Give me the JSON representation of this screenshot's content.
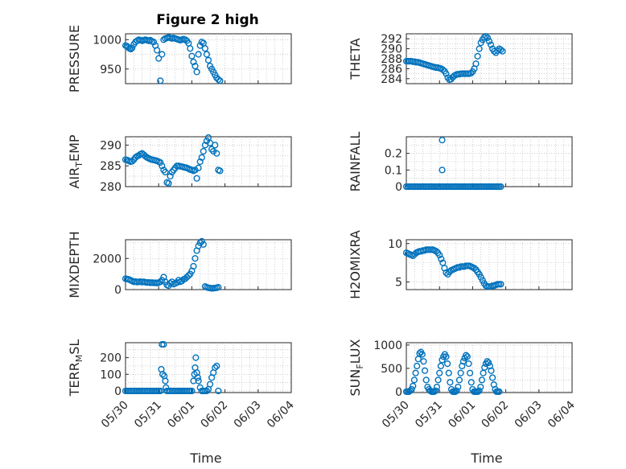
{
  "title": "Figure 2 high",
  "xlabel": "Time",
  "x_ticks": [
    "05/30",
    "05/31",
    "06/01",
    "06/02",
    "06/03",
    "06/04"
  ],
  "colors": {
    "marker": "#0072bd",
    "axes": "#262626",
    "grid": "#b0b0b0"
  },
  "chart_data": [
    {
      "type": "scatter",
      "id": "pressure",
      "ylabel": "PRESSURE",
      "ylabel_sub": "",
      "ylim": [
        925,
        1010
      ],
      "yticks": [
        950,
        1000
      ],
      "show_xticks": false,
      "x": [
        0.0,
        0.04,
        0.08,
        0.12,
        0.16,
        0.2,
        0.25,
        0.3,
        0.35,
        0.4,
        0.45,
        0.5,
        0.55,
        0.6,
        0.65,
        0.7,
        0.75,
        0.8,
        0.85,
        0.9,
        0.95,
        1.0,
        1.05,
        1.1,
        1.15,
        1.2,
        1.25,
        1.3,
        1.35,
        1.4,
        1.45,
        1.5,
        1.55,
        1.6,
        1.65,
        1.7,
        1.75,
        1.8,
        1.85,
        1.9,
        1.95,
        2.0,
        2.05,
        2.1,
        2.15,
        2.2,
        2.25,
        2.3,
        2.35,
        2.4,
        2.45,
        2.5,
        2.55,
        2.6,
        2.65,
        2.7,
        2.75,
        2.8,
        2.85
      ],
      "y": [
        990,
        989,
        987,
        985,
        984,
        986,
        992,
        996,
        998,
        1000,
        999,
        998,
        999,
        1000,
        999,
        998,
        999,
        997,
        996,
        990,
        982,
        968,
        930,
        975,
        1000,
        1002,
        1003,
        1004,
        1003,
        1002,
        1003,
        1002,
        1001,
        1000,
        999,
        1000,
        1001,
        1000,
        998,
        994,
        985,
        972,
        962,
        955,
        945,
        975,
        990,
        996,
        994,
        985,
        975,
        965,
        955,
        950,
        945,
        940,
        935,
        932,
        930
      ]
    },
    {
      "type": "scatter",
      "id": "theta",
      "ylabel": "THETA",
      "ylabel_sub": "",
      "ylim": [
        283,
        293
      ],
      "yticks": [
        284,
        286,
        288,
        290,
        292
      ],
      "show_xticks": false,
      "x": [
        0.0,
        0.05,
        0.1,
        0.15,
        0.2,
        0.25,
        0.3,
        0.35,
        0.4,
        0.45,
        0.5,
        0.55,
        0.6,
        0.65,
        0.7,
        0.75,
        0.8,
        0.85,
        0.9,
        0.95,
        1.0,
        1.05,
        1.1,
        1.15,
        1.2,
        1.25,
        1.3,
        1.35,
        1.4,
        1.45,
        1.5,
        1.55,
        1.6,
        1.65,
        1.7,
        1.75,
        1.8,
        1.85,
        1.9,
        1.95,
        2.0,
        2.05,
        2.1,
        2.15,
        2.2,
        2.25,
        2.3,
        2.35,
        2.4,
        2.45,
        2.5,
        2.55,
        2.6,
        2.65,
        2.7,
        2.75,
        2.8,
        2.85,
        2.9
      ],
      "y": [
        287.5,
        287.5,
        287.5,
        287.5,
        287.4,
        287.4,
        287.3,
        287.3,
        287.2,
        287.1,
        287.0,
        286.9,
        286.8,
        286.7,
        286.6,
        286.5,
        286.4,
        286.3,
        286.2,
        286.2,
        286.1,
        286.0,
        285.8,
        285.5,
        285.0,
        284.2,
        283.8,
        283.9,
        284.3,
        284.6,
        284.8,
        284.9,
        284.9,
        285.0,
        285.0,
        285.0,
        285.0,
        285.0,
        285.0,
        285.1,
        285.4,
        286.0,
        287.0,
        288.5,
        290.0,
        291.2,
        291.8,
        292.3,
        292.5,
        292.2,
        291.5,
        290.8,
        290.0,
        289.5,
        289.2,
        289.6,
        290.0,
        289.8,
        289.5
      ]
    },
    {
      "type": "scatter",
      "id": "air_temp",
      "ylabel": "AIR",
      "ylabel_sub": "T",
      "ylabel_suffix": "EMP",
      "ylim": [
        280,
        292
      ],
      "yticks": [
        280,
        285,
        290
      ],
      "show_xticks": false,
      "x": [
        0.0,
        0.05,
        0.1,
        0.15,
        0.2,
        0.25,
        0.3,
        0.35,
        0.4,
        0.45,
        0.5,
        0.55,
        0.6,
        0.65,
        0.7,
        0.75,
        0.8,
        0.85,
        0.9,
        0.95,
        1.0,
        1.05,
        1.1,
        1.15,
        1.2,
        1.25,
        1.3,
        1.35,
        1.4,
        1.45,
        1.5,
        1.55,
        1.6,
        1.65,
        1.7,
        1.75,
        1.8,
        1.85,
        1.9,
        1.95,
        2.0,
        2.05,
        2.1,
        2.15,
        2.2,
        2.25,
        2.3,
        2.35,
        2.4,
        2.45,
        2.5,
        2.55,
        2.6,
        2.65,
        2.7,
        2.75,
        2.8,
        2.85
      ],
      "y": [
        286.5,
        286.4,
        286.2,
        286.0,
        286.1,
        286.5,
        287.0,
        287.3,
        287.5,
        287.8,
        288.0,
        287.7,
        287.3,
        287.0,
        286.8,
        286.6,
        286.5,
        286.4,
        286.3,
        286.2,
        286.0,
        285.8,
        285.0,
        284.0,
        283.5,
        281.0,
        280.8,
        282.5,
        283.5,
        284.0,
        284.5,
        285.0,
        285.0,
        284.9,
        284.8,
        284.7,
        284.6,
        284.5,
        284.3,
        284.1,
        284.0,
        283.8,
        284.0,
        282.0,
        284.5,
        286.0,
        287.0,
        288.5,
        290.0,
        291.0,
        291.8,
        290.5,
        289.0,
        288.5,
        290.0,
        288.0,
        284.0,
        283.8
      ]
    },
    {
      "type": "scatter",
      "id": "rainfall",
      "ylabel": "RAINFALL",
      "ylabel_sub": "",
      "ylim": [
        0,
        0.3
      ],
      "yticks": [
        0,
        0.1,
        0.2
      ],
      "show_xticks": false,
      "x": [
        0.0,
        0.05,
        0.1,
        0.15,
        0.2,
        0.25,
        0.3,
        0.35,
        0.4,
        0.45,
        0.5,
        0.55,
        0.6,
        0.65,
        0.7,
        0.75,
        0.8,
        0.85,
        0.9,
        0.95,
        1.0,
        1.05,
        1.1,
        1.15,
        1.2,
        1.25,
        1.3,
        1.35,
        1.4,
        1.45,
        1.5,
        1.55,
        1.6,
        1.65,
        1.7,
        1.75,
        1.8,
        1.85,
        1.9,
        1.95,
        2.0,
        2.05,
        2.1,
        2.15,
        2.2,
        2.25,
        2.3,
        2.35,
        2.4,
        2.45,
        2.5,
        2.55,
        2.6,
        2.65,
        2.7,
        2.75,
        2.8,
        2.85,
        1.08,
        1.08
      ],
      "y": [
        0,
        0,
        0,
        0,
        0,
        0,
        0,
        0,
        0,
        0,
        0,
        0,
        0,
        0,
        0,
        0,
        0,
        0,
        0,
        0,
        0,
        0,
        0,
        0,
        0,
        0,
        0,
        0,
        0,
        0,
        0,
        0,
        0,
        0,
        0,
        0,
        0,
        0,
        0,
        0,
        0,
        0,
        0,
        0,
        0,
        0,
        0,
        0,
        0,
        0,
        0,
        0,
        0,
        0,
        0,
        0,
        0,
        0,
        0.28,
        0.1
      ]
    },
    {
      "type": "scatter",
      "id": "mixdepth",
      "ylabel": "MIXDEPTH",
      "ylabel_sub": "",
      "ylim": [
        0,
        3200
      ],
      "yticks": [
        0,
        2000
      ],
      "show_xticks": false,
      "x": [
        0.0,
        0.05,
        0.1,
        0.15,
        0.2,
        0.25,
        0.3,
        0.35,
        0.4,
        0.45,
        0.5,
        0.55,
        0.6,
        0.65,
        0.7,
        0.75,
        0.8,
        0.85,
        0.9,
        0.95,
        1.0,
        1.05,
        1.1,
        1.15,
        1.2,
        1.25,
        1.3,
        1.35,
        1.4,
        1.45,
        1.5,
        1.55,
        1.6,
        1.65,
        1.7,
        1.75,
        1.8,
        1.85,
        1.9,
        1.95,
        2.0,
        2.05,
        2.1,
        2.15,
        2.2,
        2.25,
        2.3,
        2.35,
        2.4,
        2.45,
        2.5,
        2.55,
        2.6,
        2.65,
        2.7,
        2.75,
        2.8
      ],
      "y": [
        700,
        680,
        650,
        600,
        550,
        500,
        520,
        480,
        500,
        510,
        480,
        500,
        470,
        450,
        460,
        440,
        450,
        430,
        440,
        420,
        450,
        500,
        600,
        800,
        500,
        300,
        250,
        400,
        500,
        350,
        400,
        450,
        600,
        500,
        550,
        650,
        700,
        800,
        900,
        1000,
        1200,
        1500,
        2000,
        2500,
        2800,
        3000,
        3100,
        2900,
        200,
        150,
        120,
        100,
        80,
        90,
        100,
        120,
        150
      ]
    },
    {
      "type": "scatter",
      "id": "h2omixra",
      "ylabel": "H2OMIXRA",
      "ylabel_sub": "",
      "ylim": [
        4,
        10.5
      ],
      "yticks": [
        5,
        10
      ],
      "show_xticks": false,
      "x": [
        0.0,
        0.05,
        0.1,
        0.15,
        0.2,
        0.25,
        0.3,
        0.35,
        0.4,
        0.45,
        0.5,
        0.55,
        0.6,
        0.65,
        0.7,
        0.75,
        0.8,
        0.85,
        0.9,
        0.95,
        1.0,
        1.05,
        1.1,
        1.15,
        1.2,
        1.25,
        1.3,
        1.35,
        1.4,
        1.45,
        1.5,
        1.55,
        1.6,
        1.65,
        1.7,
        1.75,
        1.8,
        1.85,
        1.9,
        1.95,
        2.0,
        2.05,
        2.1,
        2.15,
        2.2,
        2.25,
        2.3,
        2.35,
        2.4,
        2.45,
        2.5,
        2.55,
        2.6,
        2.65,
        2.7,
        2.75,
        2.8,
        2.85
      ],
      "y": [
        8.8,
        8.7,
        8.6,
        8.5,
        8.4,
        8.6,
        8.8,
        8.9,
        9.0,
        9.0,
        9.1,
        9.1,
        9.2,
        9.2,
        9.2,
        9.2,
        9.2,
        9.1,
        9.0,
        8.8,
        8.5,
        8.0,
        7.5,
        6.8,
        6.2,
        6.0,
        6.3,
        6.5,
        6.6,
        6.7,
        6.8,
        6.9,
        6.9,
        7.0,
        7.0,
        7.0,
        7.1,
        7.1,
        7.1,
        7.0,
        6.9,
        6.8,
        6.6,
        6.3,
        6.0,
        5.6,
        5.2,
        4.8,
        4.5,
        4.4,
        4.4,
        4.4,
        4.5,
        4.5,
        4.6,
        4.7,
        4.7,
        4.7
      ]
    },
    {
      "type": "scatter",
      "id": "terr_msl",
      "ylabel": "TERR",
      "ylabel_sub": "M",
      "ylabel_suffix": "SL",
      "ylim": [
        -10,
        290
      ],
      "yticks": [
        0,
        100,
        200
      ],
      "show_xticks": true,
      "x": [
        0.0,
        0.05,
        0.1,
        0.15,
        0.2,
        0.25,
        0.3,
        0.35,
        0.4,
        0.45,
        0.5,
        0.55,
        0.6,
        0.65,
        0.7,
        0.75,
        0.8,
        0.85,
        0.9,
        0.95,
        1.0,
        1.05,
        1.08,
        1.1,
        1.12,
        1.15,
        1.17,
        1.2,
        1.22,
        1.25,
        1.3,
        1.35,
        1.4,
        1.45,
        1.5,
        1.55,
        1.6,
        1.65,
        1.7,
        1.75,
        1.8,
        1.85,
        1.9,
        1.95,
        2.0,
        2.05,
        2.08,
        2.1,
        2.12,
        2.15,
        2.18,
        2.2,
        2.25,
        2.3,
        2.35,
        2.4,
        2.45,
        2.5,
        2.55,
        2.6,
        2.65,
        2.7,
        2.75,
        2.8
      ],
      "y": [
        0,
        0,
        0,
        0,
        0,
        0,
        0,
        0,
        0,
        0,
        0,
        0,
        0,
        0,
        0,
        0,
        0,
        0,
        0,
        0,
        0,
        0,
        130,
        280,
        100,
        280,
        90,
        60,
        20,
        0,
        0,
        0,
        0,
        0,
        0,
        0,
        0,
        0,
        0,
        0,
        0,
        0,
        0,
        0,
        0,
        60,
        100,
        140,
        200,
        110,
        80,
        60,
        20,
        0,
        0,
        0,
        0,
        10,
        40,
        80,
        110,
        140,
        150,
        0
      ]
    },
    {
      "type": "scatter",
      "id": "sun_flux",
      "ylabel": "SUN",
      "ylabel_sub": "F",
      "ylabel_suffix": "LUX",
      "ylim": [
        -20,
        1050
      ],
      "yticks": [
        0,
        500,
        1000
      ],
      "show_xticks": true,
      "x": [
        0.0,
        0.04,
        0.08,
        0.12,
        0.16,
        0.2,
        0.24,
        0.28,
        0.32,
        0.36,
        0.4,
        0.44,
        0.48,
        0.52,
        0.56,
        0.6,
        0.64,
        0.68,
        0.72,
        0.76,
        0.8,
        0.84,
        0.88,
        0.92,
        0.96,
        1.0,
        1.04,
        1.08,
        1.12,
        1.16,
        1.2,
        1.24,
        1.28,
        1.32,
        1.36,
        1.4,
        1.44,
        1.48,
        1.52,
        1.56,
        1.6,
        1.64,
        1.68,
        1.72,
        1.76,
        1.8,
        1.84,
        1.88,
        1.92,
        1.96,
        2.0,
        2.04,
        2.08,
        2.12,
        2.16,
        2.2,
        2.24,
        2.28,
        2.32,
        2.36,
        2.4,
        2.44,
        2.48,
        2.52,
        2.56,
        2.6,
        2.64,
        2.68,
        2.72,
        2.76,
        2.8
      ],
      "y": [
        0,
        0,
        0,
        20,
        50,
        120,
        250,
        400,
        550,
        700,
        820,
        850,
        800,
        650,
        450,
        250,
        100,
        50,
        20,
        0,
        0,
        0,
        20,
        100,
        250,
        400,
        550,
        680,
        750,
        800,
        750,
        600,
        400,
        200,
        50,
        0,
        0,
        0,
        20,
        100,
        250,
        400,
        550,
        650,
        720,
        780,
        750,
        600,
        400,
        200,
        50,
        0,
        0,
        0,
        0,
        20,
        100,
        250,
        400,
        520,
        600,
        650,
        620,
        550,
        450,
        300,
        150,
        50,
        0,
        0,
        0
      ]
    }
  ]
}
